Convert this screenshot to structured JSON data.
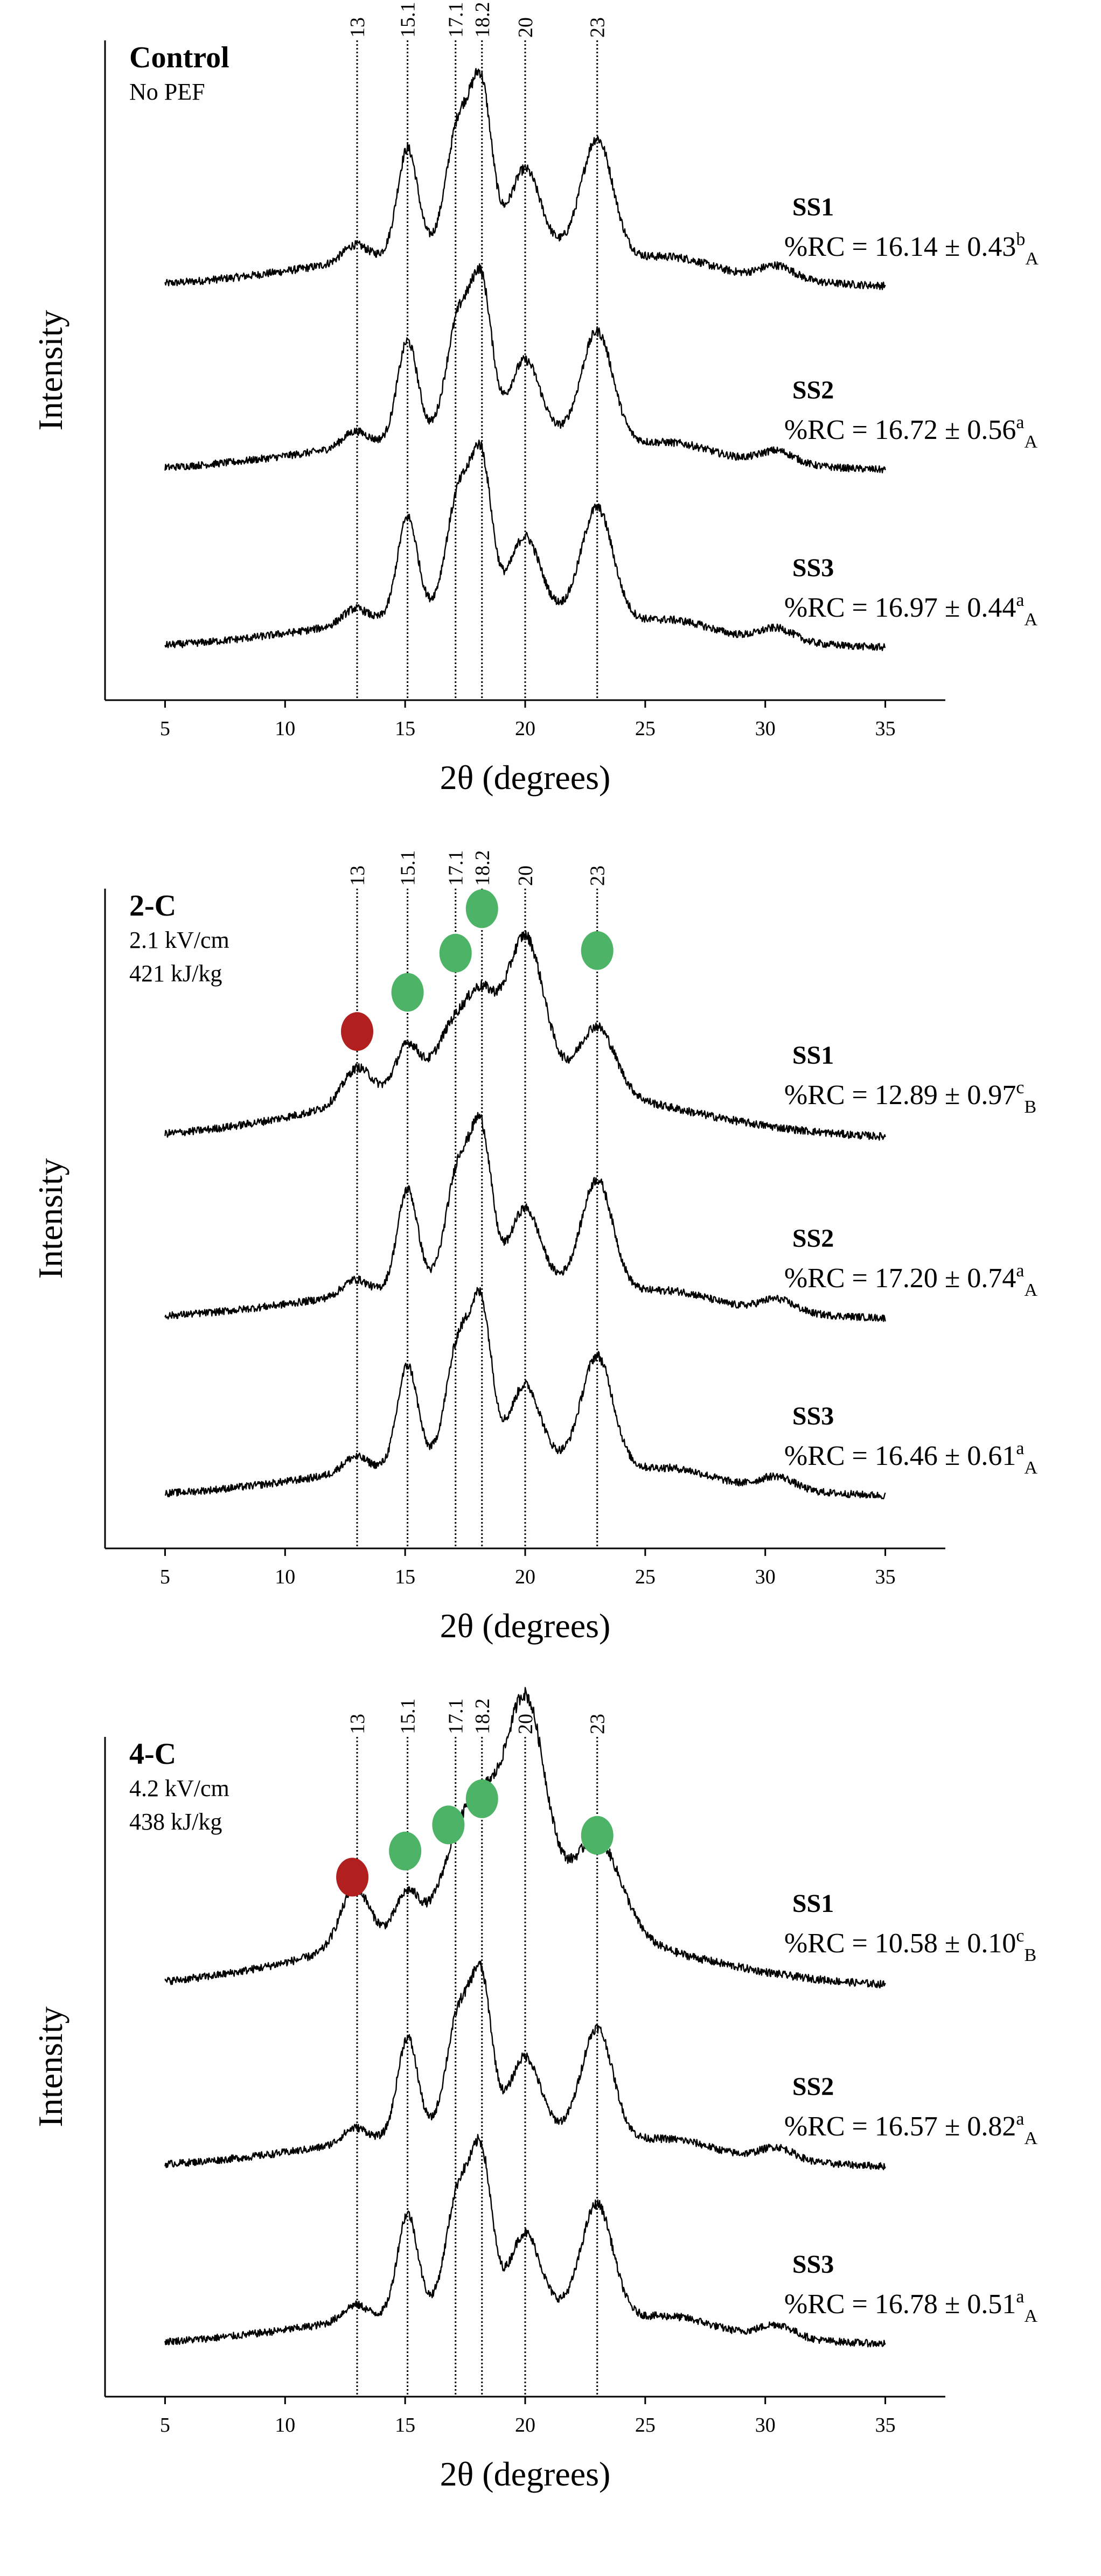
{
  "chart_data": [
    {
      "type": "line",
      "title": "Control",
      "subtitle_lines": [
        "No PEF"
      ],
      "xlabel": "2θ (degrees)",
      "ylabel": "Intensity",
      "xlim": [
        2.5,
        37.5
      ],
      "xticks": [
        5,
        10,
        15,
        20,
        25,
        30,
        35
      ],
      "tick_labels": [
        "5",
        "10",
        "15",
        "20",
        "25",
        "30",
        "35"
      ],
      "reference_lines": [
        13,
        15.1,
        17.1,
        18.2,
        20,
        23
      ],
      "reference_labels": [
        "13",
        "15.1",
        "17.1",
        "18.2",
        "20",
        "23"
      ],
      "markers": [],
      "series": [
        {
          "name": "SS1",
          "rc_value": "%RC = 16.14 ± 0.43",
          "rc_sup": "b",
          "rc_sub": "A",
          "profile": "normal"
        },
        {
          "name": "SS2",
          "rc_value": "%RC = 16.72 ± 0.56",
          "rc_sup": "a",
          "rc_sub": "A",
          "profile": "normal"
        },
        {
          "name": "SS3",
          "rc_value": "%RC = 16.97 ± 0.44",
          "rc_sup": "a",
          "rc_sub": "A",
          "profile": "normal"
        }
      ]
    },
    {
      "type": "line",
      "title": "2-C",
      "subtitle_lines": [
        "2.1 kV/cm",
        "421 kJ/kg"
      ],
      "xlabel": "2θ (degrees)",
      "ylabel": "Intensity",
      "xlim": [
        2.5,
        37.5
      ],
      "xticks": [
        5,
        10,
        15,
        20,
        25,
        30,
        35
      ],
      "tick_labels": [
        "5",
        "10",
        "15",
        "20",
        "25",
        "30",
        "35"
      ],
      "reference_lines": [
        13,
        15.1,
        17.1,
        18.2,
        20,
        23
      ],
      "reference_labels": [
        "13",
        "15.1",
        "17.1",
        "18.2",
        "20",
        "23"
      ],
      "markers": [
        {
          "x": 13,
          "color": "#b11f1f",
          "level": 0.35
        },
        {
          "x": 15.1,
          "color": "#4db467",
          "level": 0.5
        },
        {
          "x": 17.1,
          "color": "#4db467",
          "level": 0.65
        },
        {
          "x": 18.2,
          "color": "#4db467",
          "level": 0.82
        },
        {
          "x": 23,
          "color": "#4db467",
          "level": 0.66
        }
      ],
      "series": [
        {
          "name": "SS1",
          "rc_value": "%RC = 12.89 ± 0.97",
          "rc_sup": "c",
          "rc_sub": "B",
          "profile": "treated"
        },
        {
          "name": "SS2",
          "rc_value": "%RC = 17.20 ± 0.74",
          "rc_sup": "a",
          "rc_sub": "A",
          "profile": "normal"
        },
        {
          "name": "SS3",
          "rc_value": "%RC = 16.46 ± 0.61",
          "rc_sup": "a",
          "rc_sub": "A",
          "profile": "normal"
        }
      ]
    },
    {
      "type": "line",
      "title": "4-C",
      "subtitle_lines": [
        "4.2 kV/cm",
        "438 kJ/kg"
      ],
      "xlabel": "2θ (degrees)",
      "ylabel": "Intensity",
      "xlim": [
        2.5,
        37.5
      ],
      "xticks": [
        5,
        10,
        15,
        20,
        25,
        30,
        35
      ],
      "tick_labels": [
        "5",
        "10",
        "15",
        "20",
        "25",
        "30",
        "35"
      ],
      "reference_lines": [
        13,
        15.1,
        17.1,
        18.2,
        20,
        23
      ],
      "reference_labels": [
        "13",
        "15.1",
        "17.1",
        "18.2",
        "20",
        "23"
      ],
      "markers": [
        {
          "x": 12.8,
          "color": "#b11f1f",
          "level": 0.36
        },
        {
          "x": 15,
          "color": "#4db467",
          "level": 0.46
        },
        {
          "x": 16.8,
          "color": "#4db467",
          "level": 0.56
        },
        {
          "x": 18.2,
          "color": "#4db467",
          "level": 0.66
        },
        {
          "x": 23,
          "color": "#4db467",
          "level": 0.52
        }
      ],
      "series": [
        {
          "name": "SS1",
          "rc_value": "%RC = 10.58 ± 0.10",
          "rc_sup": "c",
          "rc_sub": "B",
          "profile": "strong"
        },
        {
          "name": "SS2",
          "rc_value": "%RC = 16.57 ± 0.82",
          "rc_sup": "a",
          "rc_sub": "A",
          "profile": "normal"
        },
        {
          "name": "SS3",
          "rc_value": "%RC = 16.78 ± 0.51",
          "rc_sup": "a",
          "rc_sub": "A",
          "profile": "normal"
        }
      ]
    }
  ]
}
